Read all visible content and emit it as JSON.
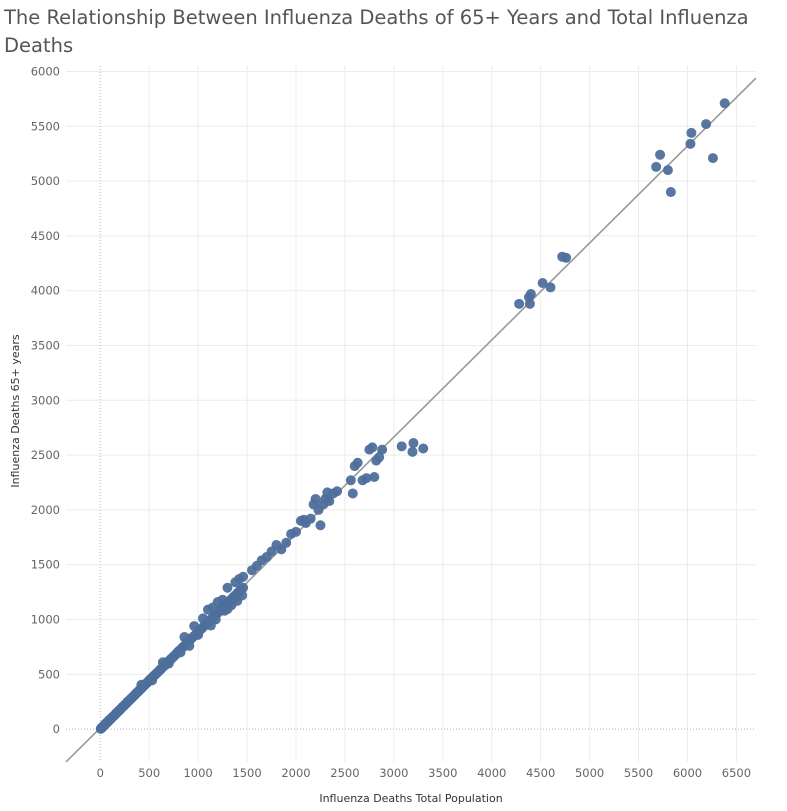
{
  "chart_data": {
    "type": "scatter",
    "title": "The Relationship Between Influenza Deaths of 65+ Years and Total Influenza Deaths",
    "xlabel": "Influenza Deaths Total Population",
    "ylabel": "Influenza Deaths 65+ years",
    "xlim": [
      -350,
      6700
    ],
    "ylim": [
      -300,
      6050
    ],
    "xticks": [
      "0",
      "500",
      "1000",
      "1500",
      "2000",
      "2500",
      "3000",
      "3500",
      "4000",
      "4500",
      "5000",
      "5500",
      "6000",
      "6500"
    ],
    "yticks": [
      "0",
      "500",
      "1000",
      "1500",
      "2000",
      "2500",
      "3000",
      "3500",
      "4000",
      "4500",
      "5000",
      "5500",
      "6000"
    ],
    "grid": true,
    "trend_line": {
      "slope": 0.885,
      "intercept": 10
    },
    "point_color": "#4e6f9b",
    "line_color": "#999999",
    "points": [
      [
        5,
        2
      ],
      [
        10,
        8
      ],
      [
        15,
        12
      ],
      [
        20,
        15
      ],
      [
        25,
        20
      ],
      [
        30,
        25
      ],
      [
        35,
        30
      ],
      [
        40,
        35
      ],
      [
        45,
        40
      ],
      [
        50,
        45
      ],
      [
        55,
        48
      ],
      [
        60,
        52
      ],
      [
        65,
        58
      ],
      [
        70,
        62
      ],
      [
        75,
        65
      ],
      [
        80,
        70
      ],
      [
        85,
        74
      ],
      [
        90,
        80
      ],
      [
        95,
        84
      ],
      [
        100,
        88
      ],
      [
        110,
        95
      ],
      [
        120,
        105
      ],
      [
        130,
        115
      ],
      [
        140,
        122
      ],
      [
        150,
        130
      ],
      [
        160,
        142
      ],
      [
        170,
        150
      ],
      [
        180,
        158
      ],
      [
        190,
        168
      ],
      [
        200,
        175
      ],
      [
        210,
        185
      ],
      [
        220,
        195
      ],
      [
        230,
        205
      ],
      [
        240,
        210
      ],
      [
        250,
        222
      ],
      [
        260,
        230
      ],
      [
        270,
        238
      ],
      [
        280,
        250
      ],
      [
        290,
        256
      ],
      [
        300,
        265
      ],
      [
        310,
        275
      ],
      [
        320,
        282
      ],
      [
        330,
        292
      ],
      [
        340,
        300
      ],
      [
        350,
        310
      ],
      [
        360,
        318
      ],
      [
        370,
        330
      ],
      [
        380,
        336
      ],
      [
        390,
        344
      ],
      [
        400,
        355
      ],
      [
        410,
        362
      ],
      [
        420,
        372
      ],
      [
        430,
        380
      ],
      [
        440,
        390
      ],
      [
        450,
        398
      ],
      [
        460,
        410
      ],
      [
        470,
        416
      ],
      [
        480,
        425
      ],
      [
        490,
        432
      ],
      [
        500,
        445
      ],
      [
        510,
        450
      ],
      [
        520,
        460
      ],
      [
        530,
        470
      ],
      [
        540,
        478
      ],
      [
        550,
        488
      ],
      [
        560,
        495
      ],
      [
        570,
        505
      ],
      [
        580,
        512
      ],
      [
        590,
        522
      ],
      [
        600,
        530
      ],
      [
        610,
        540
      ],
      [
        620,
        548
      ],
      [
        630,
        558
      ],
      [
        640,
        568
      ],
      [
        650,
        575
      ],
      [
        660,
        582
      ],
      [
        670,
        595
      ],
      [
        680,
        600
      ],
      [
        690,
        612
      ],
      [
        700,
        620
      ],
      [
        710,
        628
      ],
      [
        720,
        638
      ],
      [
        730,
        645
      ],
      [
        740,
        655
      ],
      [
        750,
        662
      ],
      [
        760,
        672
      ],
      [
        770,
        680
      ],
      [
        780,
        690
      ],
      [
        790,
        700
      ],
      [
        800,
        710
      ],
      [
        820,
        725
      ],
      [
        840,
        745
      ],
      [
        860,
        760
      ],
      [
        880,
        780
      ],
      [
        900,
        800
      ],
      [
        920,
        815
      ],
      [
        940,
        835
      ],
      [
        960,
        850
      ],
      [
        980,
        868
      ],
      [
        1000,
        885
      ],
      [
        1020,
        905
      ],
      [
        1040,
        920
      ],
      [
        1060,
        940
      ],
      [
        1080,
        955
      ],
      [
        1100,
        975
      ],
      [
        1120,
        990
      ],
      [
        1140,
        1010
      ],
      [
        1160,
        1028
      ],
      [
        1180,
        1045
      ],
      [
        1200,
        1060
      ],
      [
        1220,
        1080
      ],
      [
        1240,
        1095
      ],
      [
        1260,
        1115
      ],
      [
        1280,
        1135
      ],
      [
        1300,
        1150
      ],
      [
        1320,
        1170
      ],
      [
        1340,
        1185
      ],
      [
        1360,
        1205
      ],
      [
        1380,
        1220
      ],
      [
        1400,
        1240
      ],
      [
        1420,
        1258
      ],
      [
        1440,
        1275
      ],
      [
        1460,
        1290
      ],
      [
        530,
        445
      ],
      [
        700,
        598
      ],
      [
        820,
        700
      ],
      [
        910,
        760
      ],
      [
        1000,
        860
      ],
      [
        1130,
        945
      ],
      [
        1180,
        1000
      ],
      [
        1300,
        1095
      ],
      [
        1340,
        1130
      ],
      [
        1400,
        1170
      ],
      [
        1450,
        1220
      ],
      [
        1380,
        1200
      ],
      [
        1270,
        1080
      ],
      [
        420,
        405
      ],
      [
        640,
        610
      ],
      [
        860,
        840
      ],
      [
        960,
        940
      ],
      [
        1050,
        1010
      ],
      [
        1150,
        1110
      ],
      [
        1250,
        1180
      ],
      [
        1420,
        1370
      ],
      [
        1460,
        1390
      ],
      [
        1380,
        1340
      ],
      [
        1300,
        1290
      ],
      [
        1200,
        1160
      ],
      [
        1100,
        1090
      ],
      [
        1550,
        1450
      ],
      [
        1600,
        1490
      ],
      [
        1650,
        1540
      ],
      [
        1700,
        1570
      ],
      [
        1750,
        1620
      ],
      [
        1800,
        1680
      ],
      [
        1850,
        1640
      ],
      [
        1900,
        1700
      ],
      [
        1950,
        1780
      ],
      [
        2000,
        1800
      ],
      [
        2050,
        1900
      ],
      [
        2080,
        1910
      ],
      [
        2100,
        1880
      ],
      [
        2150,
        1920
      ],
      [
        2180,
        2050
      ],
      [
        2200,
        2100
      ],
      [
        2230,
        2000
      ],
      [
        2250,
        1860
      ],
      [
        2280,
        2050
      ],
      [
        2300,
        2100
      ],
      [
        2320,
        2160
      ],
      [
        2340,
        2080
      ],
      [
        2380,
        2150
      ],
      [
        2420,
        2170
      ],
      [
        2560,
        2270
      ],
      [
        2580,
        2150
      ],
      [
        2600,
        2400
      ],
      [
        2630,
        2430
      ],
      [
        2680,
        2270
      ],
      [
        2720,
        2290
      ],
      [
        2750,
        2550
      ],
      [
        2780,
        2570
      ],
      [
        2820,
        2450
      ],
      [
        2850,
        2480
      ],
      [
        2880,
        2550
      ],
      [
        2800,
        2300
      ],
      [
        3080,
        2580
      ],
      [
        3190,
        2530
      ],
      [
        3200,
        2610
      ],
      [
        3300,
        2560
      ],
      [
        4280,
        3880
      ],
      [
        4390,
        3880
      ],
      [
        4380,
        3940
      ],
      [
        4400,
        3970
      ],
      [
        4520,
        4070
      ],
      [
        4600,
        4030
      ],
      [
        4720,
        4310
      ],
      [
        4760,
        4300
      ],
      [
        5680,
        5130
      ],
      [
        5720,
        5240
      ],
      [
        5800,
        5100
      ],
      [
        5830,
        4900
      ],
      [
        6030,
        5340
      ],
      [
        6040,
        5440
      ],
      [
        6190,
        5520
      ],
      [
        6260,
        5210
      ],
      [
        6380,
        5710
      ]
    ]
  }
}
